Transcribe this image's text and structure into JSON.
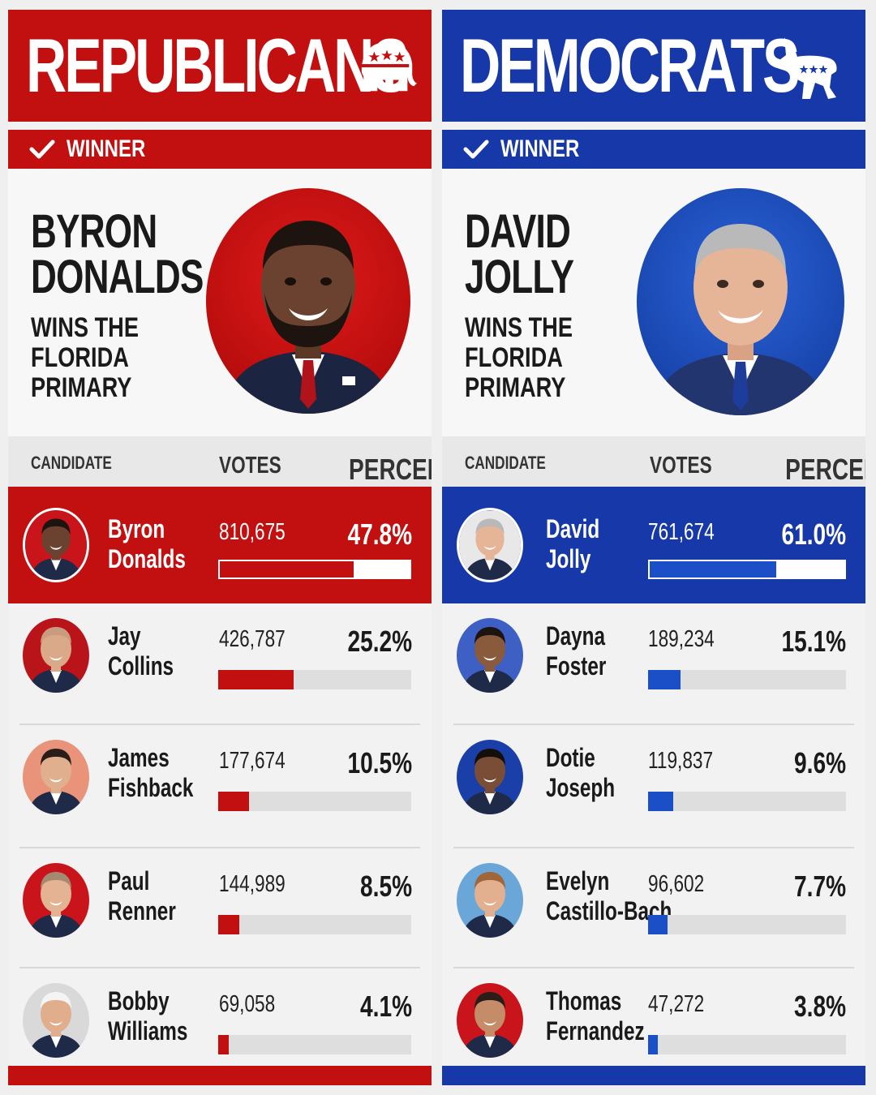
{
  "republicans": {
    "party_name": "REPUBLICANS",
    "party_icon": "elephant-icon",
    "winner_label": "WINNER",
    "hero_name_line1": "BYRON",
    "hero_name_line2": "DONALDS",
    "hero_sub_line1": "WINS THE",
    "hero_sub_line2": "FLORIDA",
    "hero_sub_line3": "PRIMARY",
    "headers": {
      "candidate": "CANDIDATE",
      "votes": "VOTES",
      "percentage": "PERCENTAGE"
    },
    "accent": "#c20f10",
    "candidates": [
      {
        "first": "Byron",
        "last": "Donalds",
        "votes": "810,675",
        "pct": "47.8%",
        "share": 0.705,
        "bg": "#c8141a",
        "skin": "#6b4230",
        "hair": "#1d1410"
      },
      {
        "first": "Jay",
        "last": "Collins",
        "votes": "426,787",
        "pct": "25.2%",
        "share": 0.39,
        "bg": "#b8141a",
        "skin": "#d9a98a",
        "hair": "#c99b80"
      },
      {
        "first": "James",
        "last": "Fishback",
        "votes": "177,674",
        "pct": "10.5%",
        "share": 0.16,
        "bg": "#e8937a",
        "skin": "#e0b08e",
        "hair": "#2a1e18"
      },
      {
        "first": "Paul",
        "last": "Renner",
        "votes": "144,989",
        "pct": "8.5%",
        "share": 0.11,
        "bg": "#c8141a",
        "skin": "#e3b393",
        "hair": "#a38a70"
      },
      {
        "first": "Bobby",
        "last": "Williams",
        "votes": "69,058",
        "pct": "4.1%",
        "share": 0.055,
        "bg": "#d9d9d9",
        "skin": "#e0ae8c",
        "hair": "#f4f4f4"
      }
    ]
  },
  "democrats": {
    "party_name": "DEMOCRATS",
    "party_icon": "donkey-icon",
    "winner_label": "WINNER",
    "hero_name_line1": "DAVID",
    "hero_name_line2": "JOLLY",
    "hero_sub_line1": "WINS THE",
    "hero_sub_line2": "FLORIDA",
    "hero_sub_line3": "PRIMARY",
    "headers": {
      "candidate": "CANDIDATE",
      "votes": "VOTES",
      "percentage": "PERCENTAGE"
    },
    "accent": "#1638a8",
    "candidates": [
      {
        "first": "David",
        "last": "Jolly",
        "votes": "761,674",
        "pct": "61.0%",
        "share": 0.65,
        "bg": "#e8e8e8",
        "skin": "#e6b497",
        "hair": "#b9b9b9"
      },
      {
        "first": "Dayna",
        "last": "Foster",
        "votes": "189,234",
        "pct": "15.1%",
        "share": 0.165,
        "bg": "#3e5fc4",
        "skin": "#8a5a3c",
        "hair": "#1b1411"
      },
      {
        "first": "Dotie",
        "last": "Joseph",
        "votes": "119,837",
        "pct": "9.6%",
        "share": 0.125,
        "bg": "#1a3fa8",
        "skin": "#7a4e36",
        "hair": "#150f0c"
      },
      {
        "first": "Evelyn",
        "last": "Castillo-Bach",
        "votes": "96,602",
        "pct": "7.7%",
        "share": 0.1,
        "bg": "#6aa6d8",
        "skin": "#e2b08e",
        "hair": "#a0663a"
      },
      {
        "first": "Thomas",
        "last": "Fernandez",
        "votes": "47,272",
        "pct": "3.8%",
        "share": 0.05,
        "bg": "#c8141a",
        "skin": "#c48c68",
        "hair": "#2a1e18"
      }
    ]
  }
}
